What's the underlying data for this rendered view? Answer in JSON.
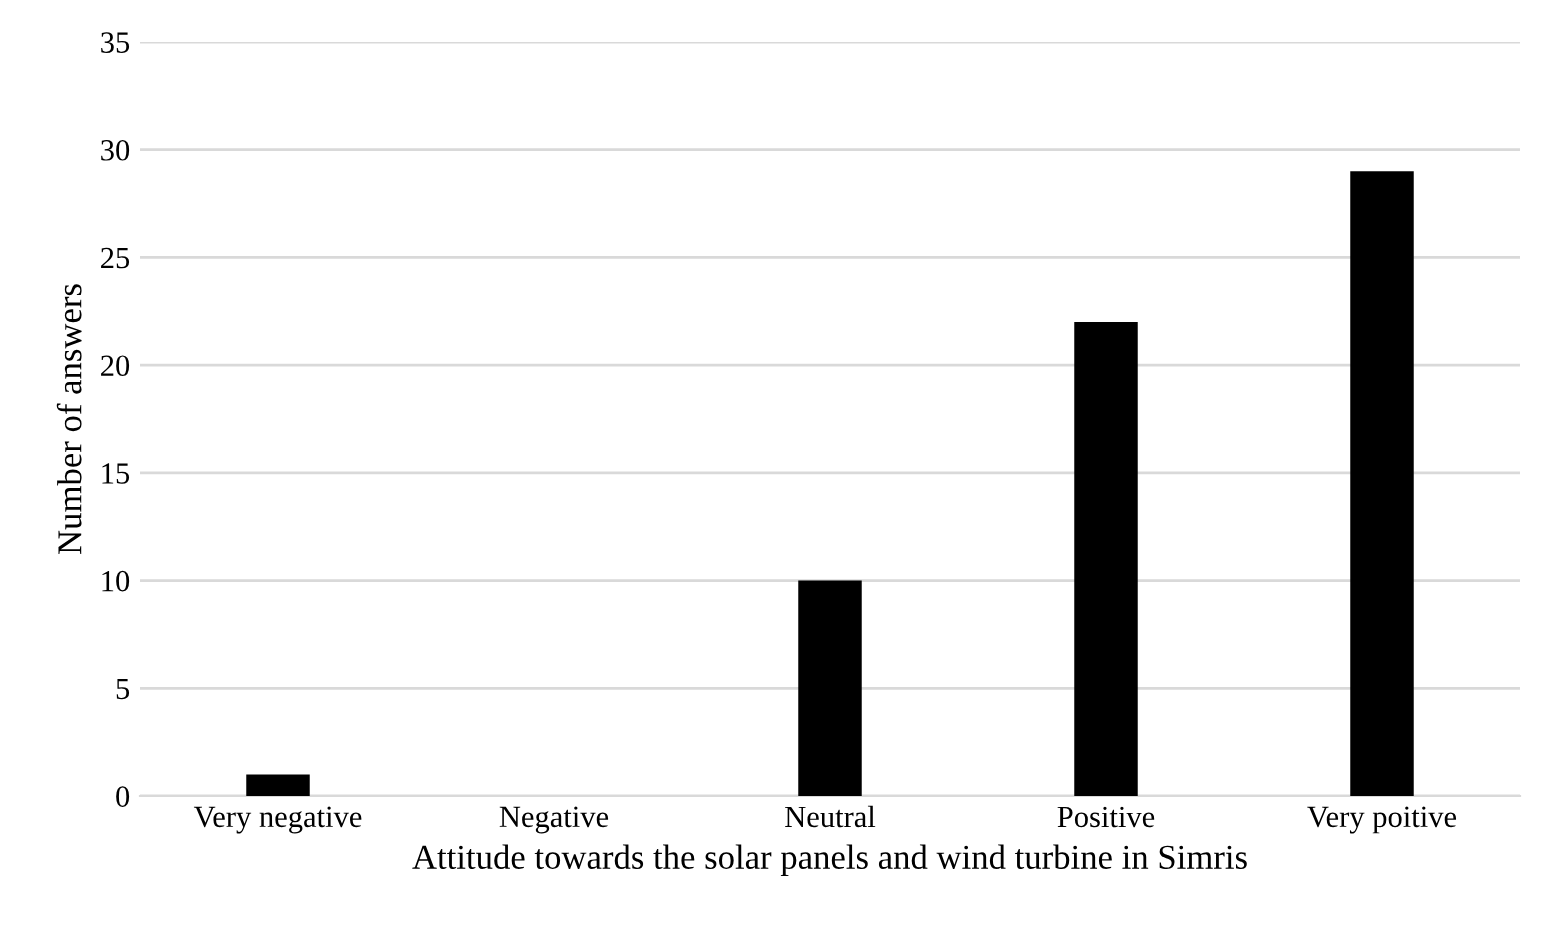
{
  "chart_data": {
    "type": "bar",
    "xlabel": "Attitude towards the solar panels and wind turbine in Simris",
    "ylabel": "Number of answers",
    "categories": [
      "Very negative",
      "Negative",
      "Neutral",
      "Positive",
      "Very poitive"
    ],
    "values": [
      1,
      0,
      10,
      22,
      29
    ],
    "color": "#000000",
    "ylim": [
      0,
      35
    ],
    "yticks": [
      0,
      5,
      10,
      15,
      20,
      25,
      30,
      35
    ],
    "grid": "y",
    "legend": false
  }
}
